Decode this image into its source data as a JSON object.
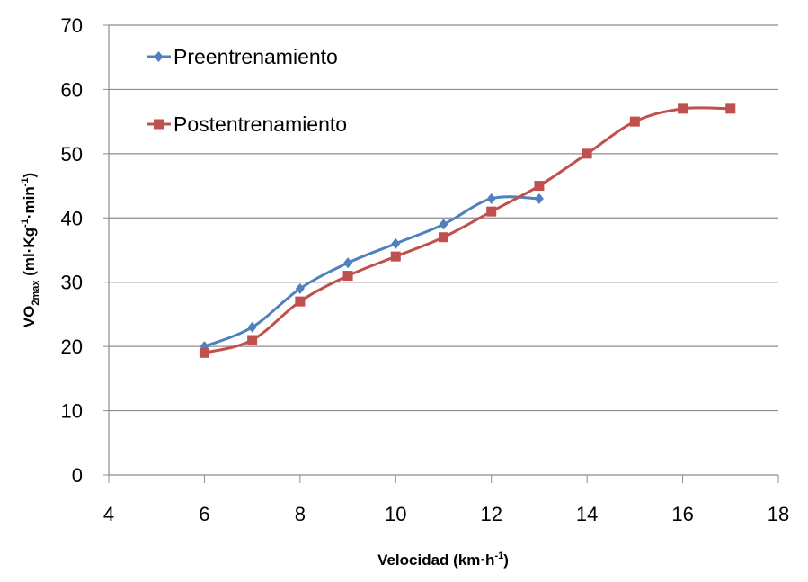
{
  "chart_data": {
    "type": "line",
    "title": "",
    "xlabel": "Velocidad (km·h-1)",
    "xlabel_parts": {
      "main": "Velocidad (km·h",
      "sup": "-1",
      "end": ")"
    },
    "ylabel": "VO2max (ml·Kg-1·min-1)",
    "ylabel_parts": {
      "a": "VO",
      "sub": "2max",
      "b": " (ml·Kg",
      "sup1": "-1",
      "c": "·min",
      "sup2": "-1",
      "d": ")"
    },
    "xlim": [
      4,
      18
    ],
    "ylim": [
      0,
      70
    ],
    "xticks": [
      4,
      6,
      8,
      10,
      12,
      14,
      16,
      18
    ],
    "yticks": [
      0,
      10,
      20,
      30,
      40,
      50,
      60,
      70
    ],
    "xtick_labels": [
      "4",
      "6",
      "8",
      "10",
      "12",
      "14",
      "16",
      "18"
    ],
    "ytick_labels": [
      "0",
      "10",
      "20",
      "30",
      "40",
      "50",
      "60",
      "70"
    ],
    "grid": "horizontal",
    "legend_position": "top-left",
    "series": [
      {
        "name": "Preentrenamiento",
        "color": "#4F81BD",
        "marker": "diamond",
        "smooth": true,
        "x": [
          6,
          7,
          8,
          9,
          10,
          11,
          12,
          13
        ],
        "y": [
          20,
          23,
          29,
          33,
          36,
          39,
          43,
          43
        ]
      },
      {
        "name": "Postentrenamiento",
        "color": "#C0504D",
        "marker": "square",
        "smooth": true,
        "x": [
          6,
          7,
          8,
          9,
          10,
          11,
          12,
          13,
          14,
          15,
          16,
          17
        ],
        "y": [
          19,
          21,
          27,
          31,
          34,
          37,
          41,
          45,
          50,
          55,
          57,
          57
        ]
      }
    ]
  }
}
